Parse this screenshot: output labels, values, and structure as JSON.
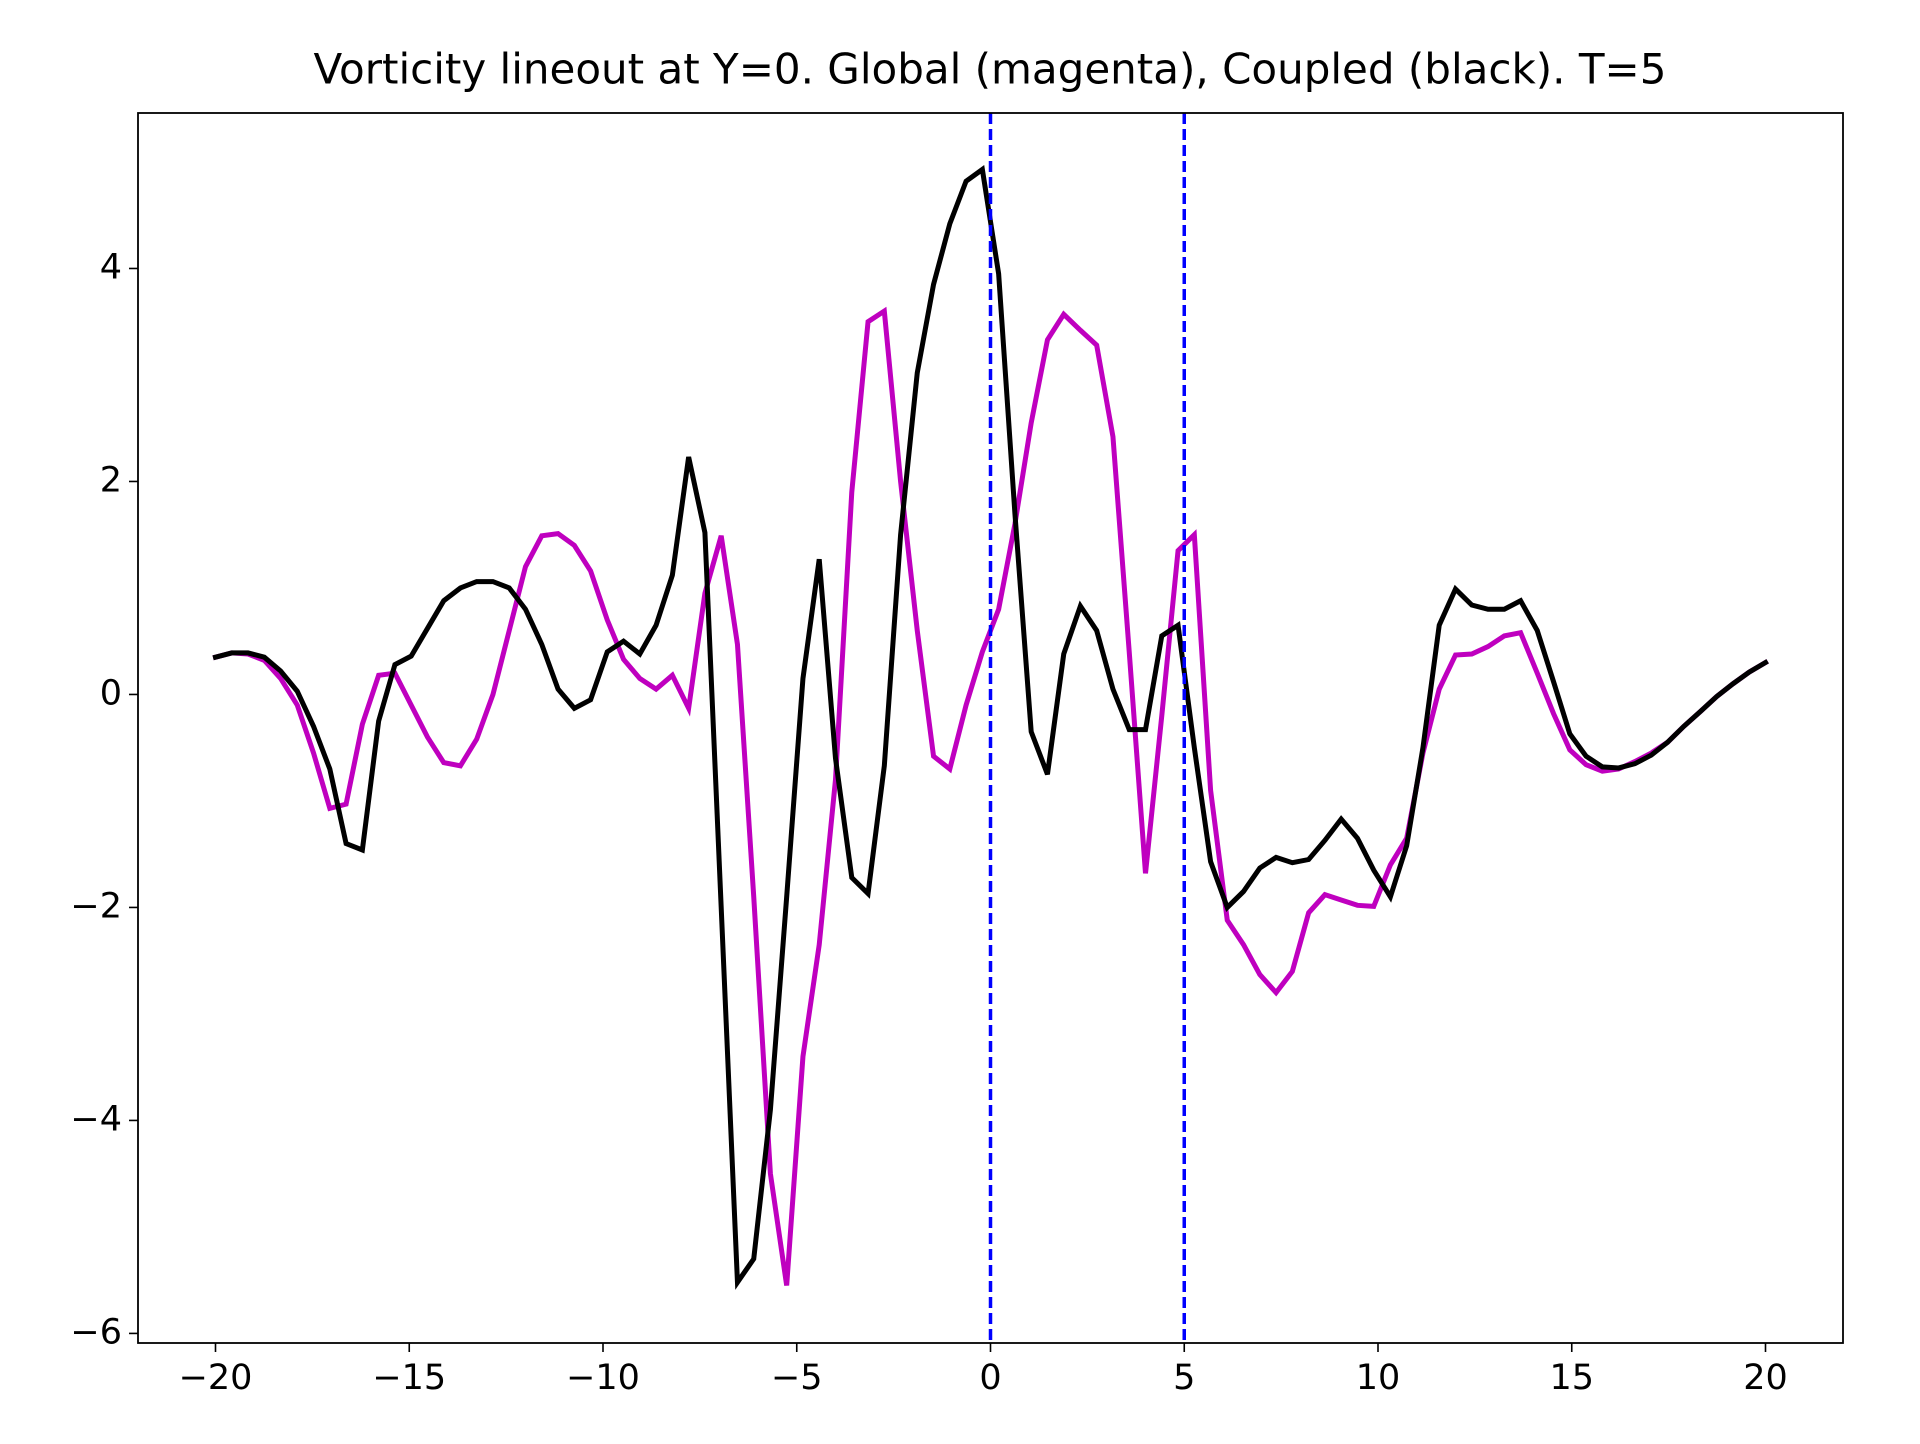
{
  "chart_data": {
    "type": "line",
    "title": "Vorticity lineout at Y=0. Global (magenta), Coupled (black). T=5",
    "x": [
      -20,
      -19.58,
      -19.16,
      -18.74,
      -18.32,
      -17.89,
      -17.47,
      -17.05,
      -16.63,
      -16.21,
      -15.79,
      -15.37,
      -14.95,
      -14.53,
      -14.11,
      -13.68,
      -13.26,
      -12.84,
      -12.42,
      -12.0,
      -11.58,
      -11.16,
      -10.74,
      -10.32,
      -9.89,
      -9.47,
      -9.05,
      -8.63,
      -8.21,
      -7.79,
      -7.37,
      -6.95,
      -6.53,
      -6.11,
      -5.68,
      -5.26,
      -4.84,
      -4.42,
      -4.0,
      -3.58,
      -3.16,
      -2.74,
      -2.32,
      -1.89,
      -1.47,
      -1.05,
      -0.63,
      -0.21,
      0.21,
      0.63,
      1.05,
      1.47,
      1.89,
      2.32,
      2.74,
      3.16,
      3.58,
      4.0,
      4.42,
      4.84,
      5.26,
      5.68,
      6.11,
      6.53,
      6.95,
      7.37,
      7.79,
      8.21,
      8.63,
      9.05,
      9.47,
      9.89,
      10.32,
      10.74,
      11.16,
      11.58,
      12.0,
      12.42,
      12.84,
      13.26,
      13.68,
      14.11,
      14.53,
      14.95,
      15.37,
      15.79,
      16.21,
      16.63,
      17.05,
      17.47,
      17.89,
      18.32,
      18.74,
      19.16,
      19.58,
      20
    ],
    "series": [
      {
        "color": "#bf00bf",
        "values": [
          0.35,
          0.39,
          0.38,
          0.32,
          0.15,
          -0.1,
          -0.55,
          -1.07,
          -1.03,
          -0.28,
          0.18,
          0.2,
          -0.1,
          -0.4,
          -0.64,
          -0.67,
          -0.42,
          0.0,
          0.6,
          1.2,
          1.49,
          1.51,
          1.4,
          1.16,
          0.7,
          0.33,
          0.15,
          0.05,
          0.18,
          -0.13,
          0.95,
          1.49,
          0.47,
          -1.9,
          -4.5,
          -5.55,
          -3.4,
          -2.35,
          -0.8,
          1.9,
          3.5,
          3.6,
          2.0,
          0.6,
          -0.58,
          -0.7,
          -0.1,
          0.4,
          0.8,
          1.6,
          2.55,
          3.33,
          3.57,
          3.42,
          3.28,
          2.42,
          0.4,
          -1.68,
          -0.2,
          1.35,
          1.5,
          -0.9,
          -2.12,
          -2.35,
          -2.63,
          -2.8,
          -2.6,
          -2.05,
          -1.88,
          -1.93,
          -1.98,
          -1.99,
          -1.6,
          -1.35,
          -0.55,
          0.05,
          0.37,
          0.38,
          0.45,
          0.55,
          0.58,
          0.2,
          -0.18,
          -0.52,
          -0.66,
          -0.72,
          -0.7,
          -0.63,
          -0.55,
          -0.45,
          -0.3,
          -0.16,
          -0.02,
          0.1,
          0.21,
          0.3
        ]
      },
      {
        "color": "#000000",
        "values": [
          0.35,
          0.39,
          0.39,
          0.35,
          0.22,
          0.03,
          -0.3,
          -0.7,
          -1.4,
          -1.46,
          -0.25,
          0.28,
          0.36,
          0.62,
          0.88,
          1.0,
          1.06,
          1.06,
          1.0,
          0.8,
          0.47,
          0.05,
          -0.13,
          -0.05,
          0.4,
          0.5,
          0.38,
          0.65,
          1.12,
          2.23,
          1.52,
          -2.0,
          -5.52,
          -5.3,
          -3.9,
          -1.9,
          0.15,
          1.27,
          -0.6,
          -1.72,
          -1.87,
          -0.67,
          1.5,
          3.02,
          3.85,
          4.42,
          4.82,
          4.93,
          3.95,
          1.7,
          -0.35,
          -0.75,
          0.38,
          0.83,
          0.6,
          0.05,
          -0.33,
          -0.33,
          0.55,
          0.65,
          -0.5,
          -1.57,
          -2.0,
          -1.85,
          -1.63,
          -1.53,
          -1.58,
          -1.55,
          -1.37,
          -1.17,
          -1.35,
          -1.65,
          -1.9,
          -1.42,
          -0.5,
          0.65,
          0.99,
          0.84,
          0.8,
          0.8,
          0.88,
          0.6,
          0.12,
          -0.37,
          -0.58,
          -0.68,
          -0.69,
          -0.65,
          -0.57,
          -0.45,
          -0.3,
          -0.16,
          -0.02,
          0.1,
          0.21,
          0.3
        ]
      }
    ],
    "vlines": [
      0,
      5
    ],
    "vline_color": "#0000ff",
    "xlim": [
      -22,
      22
    ],
    "ylim": [
      -6.09,
      5.46
    ],
    "xticks": [
      {
        "value": -20,
        "label": "−20"
      },
      {
        "value": -15,
        "label": "−15"
      },
      {
        "value": -10,
        "label": "−10"
      },
      {
        "value": -5,
        "label": "−5"
      },
      0,
      5,
      10,
      15,
      20
    ],
    "yticks": [
      {
        "value": -6,
        "label": "−6"
      },
      {
        "value": -4,
        "label": "−4"
      },
      {
        "value": -2,
        "label": "−2"
      },
      0,
      2,
      4
    ]
  }
}
